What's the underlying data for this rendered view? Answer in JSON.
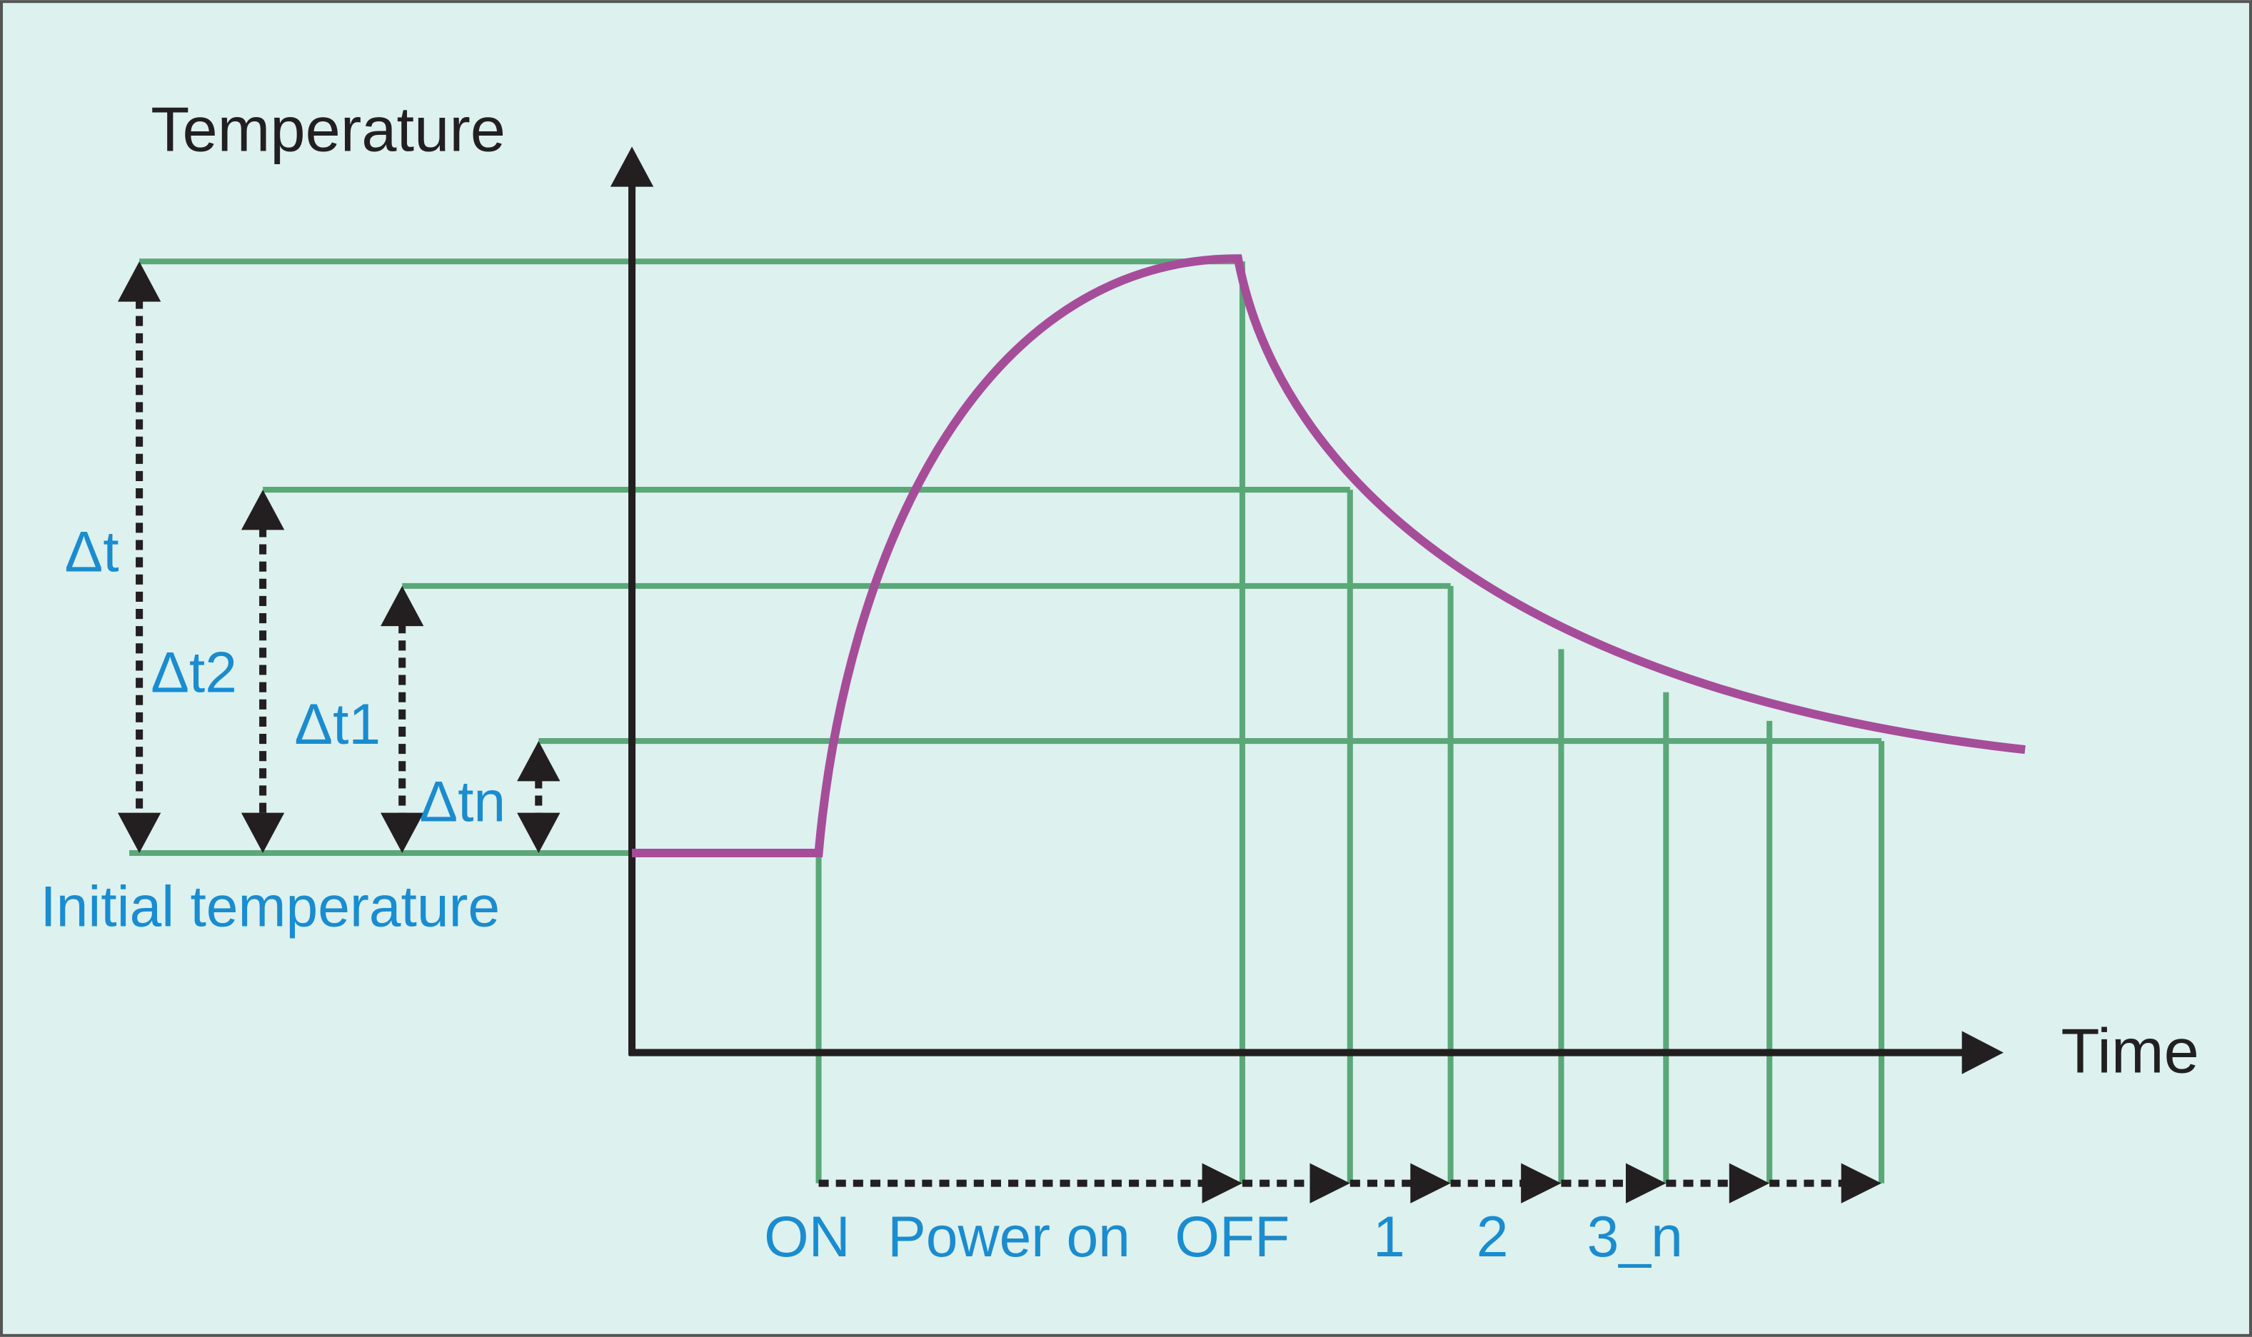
{
  "axes": {
    "y_label": "Temperature",
    "x_label": "Time"
  },
  "deltas": [
    {
      "label": "Δt"
    },
    {
      "label": "Δt2"
    },
    {
      "label": "Δt1"
    },
    {
      "label": "Δtn"
    }
  ],
  "baseline_label": "Initial temperature",
  "timeline": [
    "ON",
    "Power on",
    "OFF",
    "1",
    "2",
    "3_n"
  ]
}
